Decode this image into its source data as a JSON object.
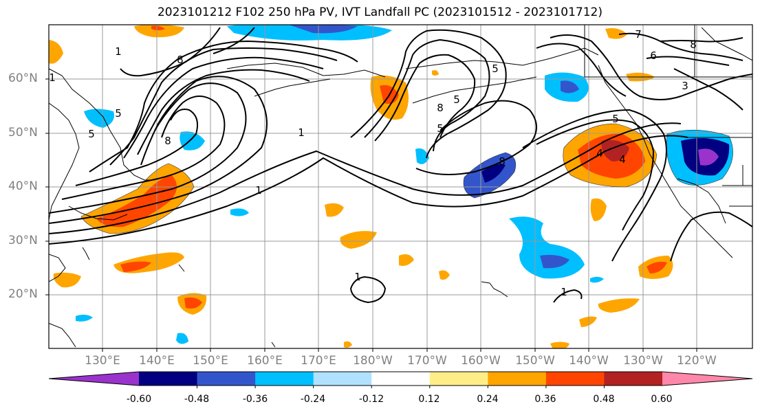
{
  "title": "2023101212 F102 250 hPa PV, IVT Landfall PC (2023101512 - 2023101712)",
  "lat_labels": [
    "60°N",
    "50°N",
    "40°N",
    "30°N",
    "20°N"
  ],
  "lon_labels": [
    "130°E",
    "140°E",
    "150°E",
    "160°E",
    "170°E",
    "180°W",
    "170°W",
    "160°W",
    "150°W",
    "140°W",
    "130°W",
    "120°W"
  ],
  "colorbar": {
    "colors": [
      "#9933cc",
      "#000080",
      "#3355cc",
      "#00bfff",
      "#b0e2ff",
      "#ffffff",
      "#ffee88",
      "#ffa500",
      "#ff4500",
      "#b22222",
      "#ff88aa"
    ],
    "tick_labels": [
      "-0.60",
      "-0.48",
      "-0.36",
      "-0.24",
      "-0.12",
      "0.12",
      "0.24",
      "0.36",
      "0.48",
      "0.60"
    ]
  },
  "contour_labels": [
    "1",
    "1",
    "1",
    "1",
    "1",
    "1",
    "5",
    "5",
    "5",
    "5",
    "5",
    "5",
    "8",
    "8",
    "8",
    "8",
    "4",
    "4",
    "6",
    "7",
    "3",
    "8"
  ]
}
